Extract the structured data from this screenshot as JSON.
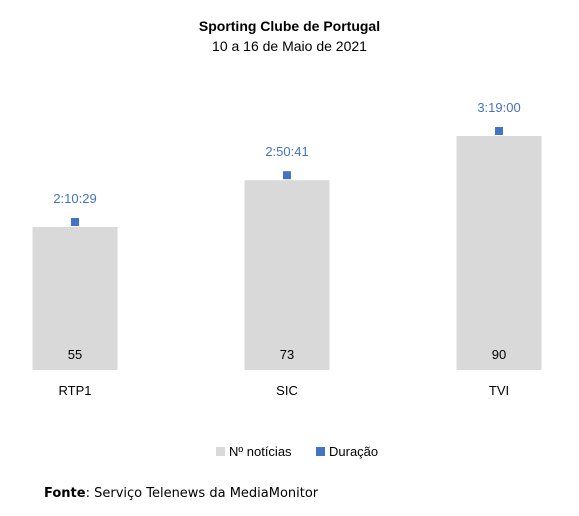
{
  "chart_data": {
    "type": "bar",
    "title": "Sporting Clube de Portugal",
    "subtitle": "10 a 16 de Maio de 2021",
    "categories": [
      "RTP1",
      "SIC",
      "TVI"
    ],
    "series": [
      {
        "name": "Nº notícias",
        "kind": "bar",
        "values": [
          55,
          73,
          90
        ],
        "labels": [
          "55",
          "73",
          "90"
        ],
        "color": "#d9d9d9"
      },
      {
        "name": "Duração",
        "kind": "marker",
        "values": [
          "2:10:29",
          "2:50:41",
          "3:19:00"
        ],
        "seconds": [
          7829,
          10241,
          11940
        ],
        "color": "#4472c4"
      }
    ],
    "legend": "bottom",
    "grid": false,
    "ylim": [
      0,
      100
    ]
  },
  "source": {
    "label": "Fonte",
    "text": "Serviço Telenews da MediaMonitor"
  }
}
